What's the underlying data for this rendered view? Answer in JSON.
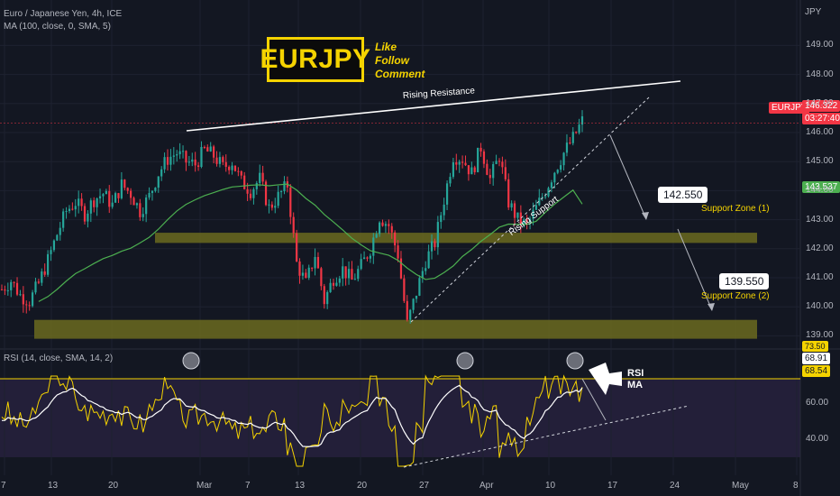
{
  "header": {
    "symbol_title": "Euro / Japanese Yen, 4h, ICE",
    "ma_indicator": "MA (100, close, 0, SMA, 5)",
    "rsi_indicator": "RSI (14, close, SMA, 14, 2)",
    "currency": "JPY"
  },
  "badge": {
    "text": "EURJPY",
    "like": "Like",
    "follow": "Follow",
    "comment": "Comment"
  },
  "annotations": {
    "rising_resistance": "Rising Resistance",
    "rising_support": "Rising Support",
    "support_zone_1": "Support Zone (1)",
    "support_zone_2": "Support Zone (2)",
    "target_1": "142.550",
    "target_2": "139.550",
    "rsi_label": "RSI",
    "ma_label": "MA"
  },
  "price_tags": {
    "symbol": "EURJPY",
    "last": "146.322",
    "countdown": "03:27:40",
    "ma_value": "143.537"
  },
  "rsi_tags": {
    "upper": "73.50",
    "rsi": "68.91",
    "ma": "68.54"
  },
  "colors": {
    "bull": "#26a69a",
    "bear": "#f23645",
    "zone": "#6b6a1f",
    "accent": "#f5d300",
    "ma": "#4caf50"
  },
  "chart_data": [
    {
      "type": "candlestick",
      "title": "Euro / Japanese Yen, 4h, ICE",
      "ylabel": "JPY",
      "yticks": [
        139.0,
        140.0,
        141.0,
        142.0,
        143.0,
        144.0,
        145.0,
        146.0,
        147.0,
        148.0,
        149.0
      ],
      "ylim": [
        138.5,
        149.5
      ],
      "x_tick_labels": [
        "7",
        "13",
        "20",
        "Mar",
        "7",
        "13",
        "20",
        "27",
        "Apr",
        "10",
        "17",
        "24",
        "May",
        "8"
      ],
      "close_path": [
        140.6,
        140.9,
        140.4,
        140.2,
        140.8,
        141.6,
        142.5,
        143.3,
        143.6,
        143.2,
        143.7,
        143.9,
        143.5,
        144.2,
        143.9,
        143.3,
        143.8,
        144.6,
        145.1,
        145.3,
        145.0,
        144.9,
        145.4,
        145.2,
        144.8,
        145.0,
        144.3,
        144.0,
        144.4,
        143.4,
        143.8,
        144.2,
        141.5,
        140.8,
        141.8,
        140.2,
        141.0,
        141.3,
        140.9,
        141.4,
        142.0,
        143.1,
        142.8,
        141.8,
        139.4,
        140.5,
        141.6,
        142.2,
        143.7,
        145.2,
        145.1,
        144.6,
        145.5,
        144.4,
        145.2,
        143.6,
        143.0,
        142.8,
        143.4,
        144.0,
        144.7,
        145.3,
        145.8,
        146.4
      ],
      "ma_line": {
        "name": "MA (100, close, 0, SMA, 5)",
        "current": 143.537
      },
      "support_zones": [
        {
          "name": "Support Zone (1)",
          "low": 142.2,
          "high": 142.55
        },
        {
          "name": "Support Zone (2)",
          "low": 138.9,
          "high": 139.55
        }
      ],
      "targets": [
        142.55,
        139.55
      ],
      "last_price": 146.322
    },
    {
      "type": "line",
      "title": "RSI (14, close, SMA, 14, 2)",
      "yticks": [
        40.0,
        60.0
      ],
      "ylim": [
        20,
        80
      ],
      "upper_band": 73.5,
      "series": [
        {
          "name": "RSI",
          "current": 68.91
        },
        {
          "name": "MA",
          "current": 68.54
        }
      ]
    }
  ]
}
